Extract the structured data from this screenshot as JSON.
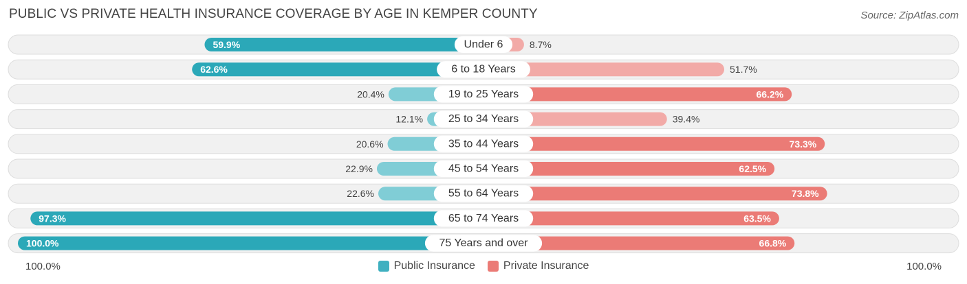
{
  "title": "PUBLIC VS PRIVATE HEALTH INSURANCE COVERAGE BY AGE IN KEMPER COUNTY",
  "source": "Source: ZipAtlas.com",
  "axis": {
    "left_label": "100.0%",
    "right_label": "100.0%"
  },
  "legend": [
    {
      "label": "Public Insurance",
      "color": "#3fb0c0"
    },
    {
      "label": "Private Insurance",
      "color": "#eb7b76"
    }
  ],
  "colors": {
    "public_dark": "#2ba8b8",
    "public_light": "#80cdd6",
    "private_dark": "#eb7b76",
    "private_light": "#f2aaa7",
    "row_bg": "#f1f1f1",
    "row_border": "#dddddd"
  },
  "chart_data": {
    "type": "bar",
    "orientation": "diverging-horizontal",
    "categories": [
      "Under 6",
      "6 to 18 Years",
      "19 to 25 Years",
      "25 to 34 Years",
      "35 to 44 Years",
      "45 to 54 Years",
      "55 to 64 Years",
      "65 to 74 Years",
      "75 Years and over"
    ],
    "series": [
      {
        "name": "Public Insurance",
        "values": [
          59.9,
          62.6,
          20.4,
          12.1,
          20.6,
          22.9,
          22.6,
          97.3,
          100.0
        ],
        "labels": [
          "59.9%",
          "62.6%",
          "20.4%",
          "12.1%",
          "20.6%",
          "22.9%",
          "22.6%",
          "97.3%",
          "100.0%"
        ]
      },
      {
        "name": "Private Insurance",
        "values": [
          8.7,
          51.7,
          66.2,
          39.4,
          73.3,
          62.5,
          73.8,
          63.5,
          66.8
        ],
        "labels": [
          "8.7%",
          "51.7%",
          "66.2%",
          "39.4%",
          "73.3%",
          "62.5%",
          "73.8%",
          "63.5%",
          "66.8%"
        ]
      }
    ],
    "xlim": [
      0,
      100
    ]
  }
}
